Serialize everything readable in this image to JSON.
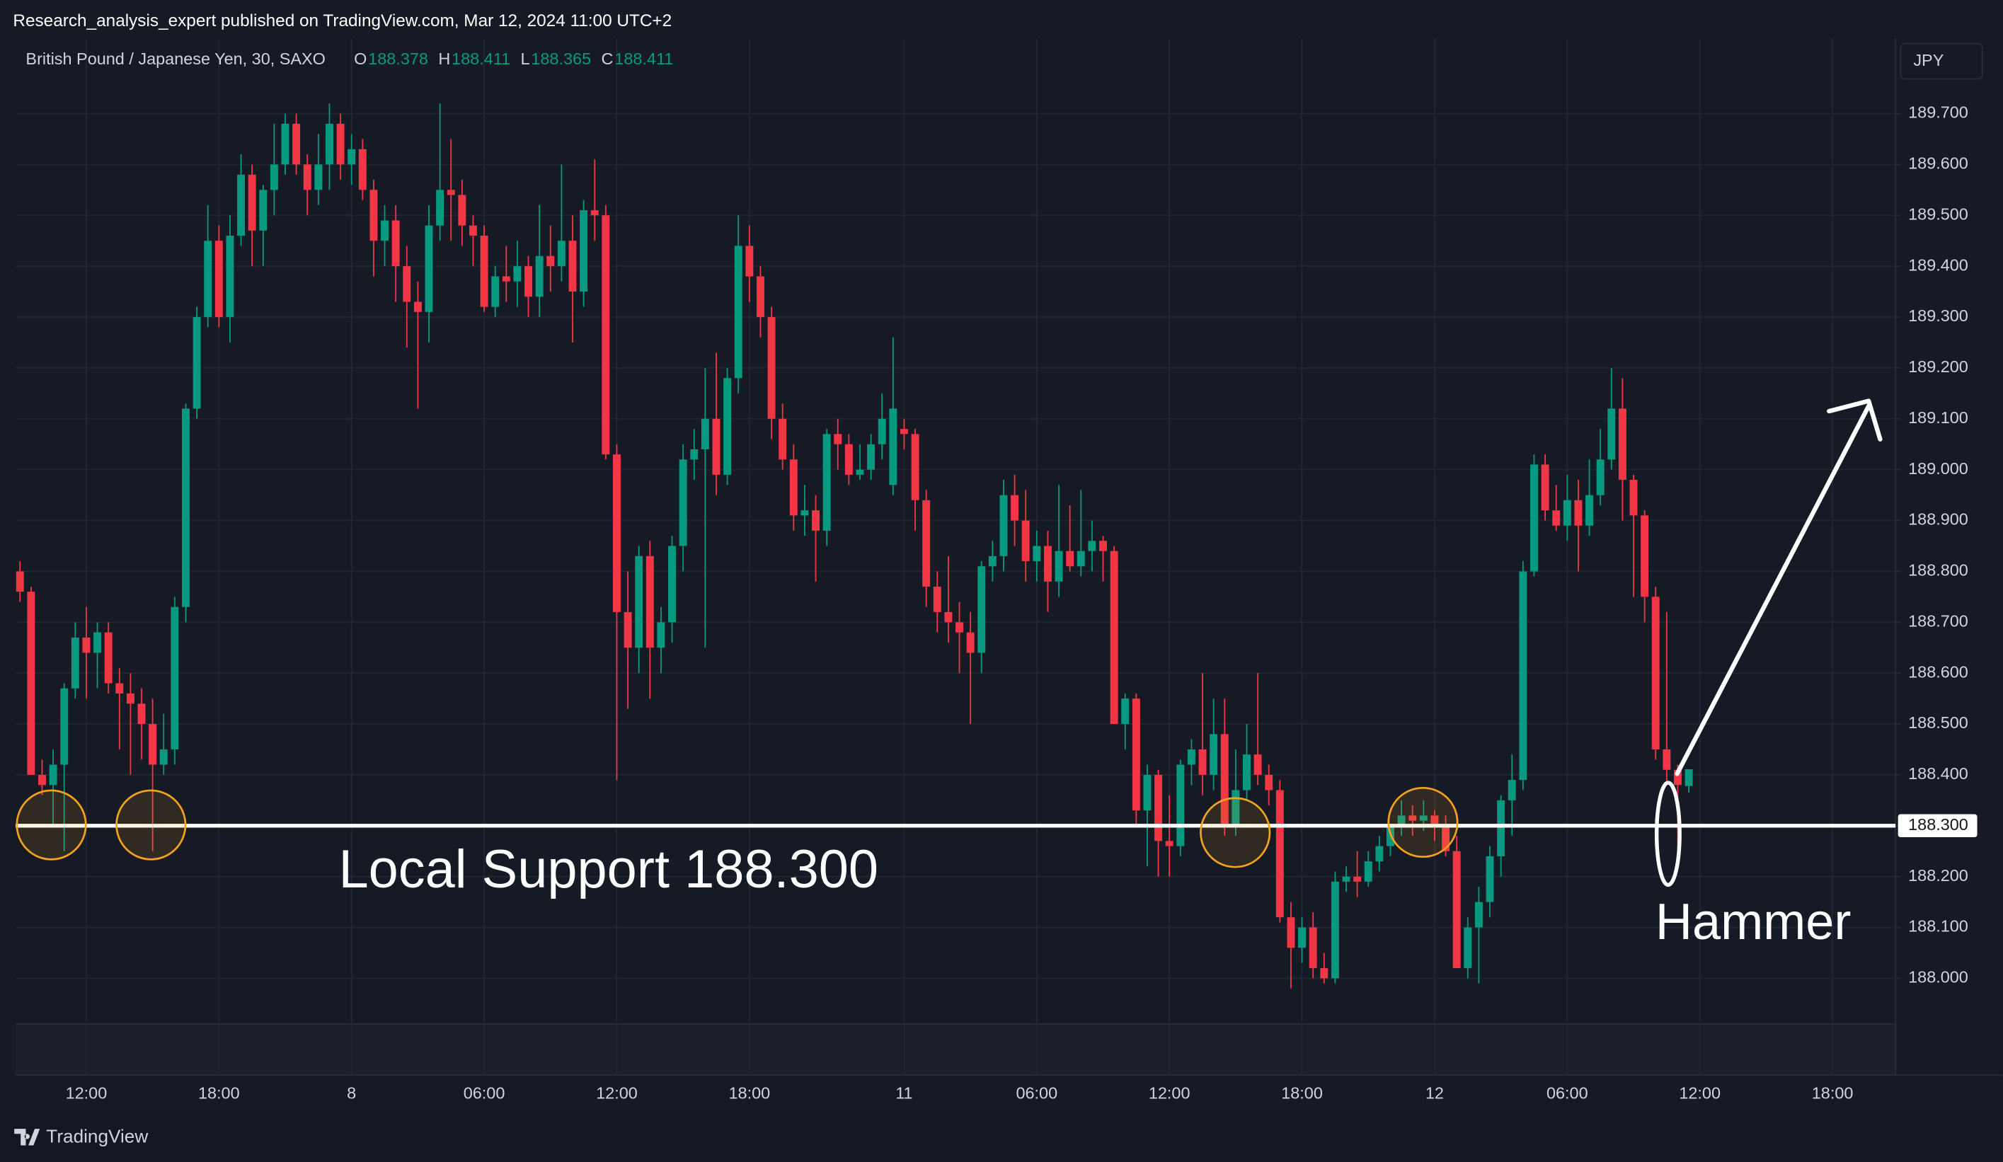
{
  "header": {
    "published": "Research_analysis_expert published on TradingView.com, Mar 12, 2024 11:00 UTC+2"
  },
  "footer": {
    "brand": "TradingView"
  },
  "chart_data": {
    "type": "candlestick",
    "symbol": "British Pound / Japanese Yen, 30, SAXO",
    "legend_values": [
      {
        "label": "O",
        "value": 188.378
      },
      {
        "label": "H",
        "value": 188.411
      },
      {
        "label": "L",
        "value": 188.365
      },
      {
        "label": "C",
        "value": 188.411
      }
    ],
    "currency": "JPY",
    "up_color": "#089981",
    "down_color": "#f23645",
    "ylim": [
      187.91,
      189.848
    ],
    "yticks": [
      {
        "value": 188,
        "label": "188.000"
      },
      {
        "value": 188.1,
        "label": "188.100"
      },
      {
        "value": 188.2,
        "label": "188.200"
      },
      {
        "value": 188.3,
        "label": "188.300"
      },
      {
        "value": 188.4,
        "label": "188.400"
      },
      {
        "value": 188.5,
        "label": "188.500"
      },
      {
        "value": 188.6,
        "label": "188.600"
      },
      {
        "value": 188.7,
        "label": "188.700"
      },
      {
        "value": 188.8,
        "label": "188.800"
      },
      {
        "value": 188.9,
        "label": "188.900"
      },
      {
        "value": 189,
        "label": "189.000"
      },
      {
        "value": 189.1,
        "label": "189.100"
      },
      {
        "value": 189.2,
        "label": "189.200"
      },
      {
        "value": 189.3,
        "label": "189.300"
      },
      {
        "value": 189.4,
        "label": "189.400"
      },
      {
        "value": 189.5,
        "label": "189.500"
      },
      {
        "value": 189.6,
        "label": "189.600"
      },
      {
        "value": 189.7,
        "label": "189.700"
      }
    ],
    "xlim": [
      -0.4,
      169.7
    ],
    "xticks": [
      {
        "value": 6,
        "label": "12:00"
      },
      {
        "value": 18,
        "label": "18:00"
      },
      {
        "value": 30,
        "label": "8"
      },
      {
        "value": 42,
        "label": "06:00"
      },
      {
        "value": 54,
        "label": "12:00"
      },
      {
        "value": 66,
        "label": "18:00"
      },
      {
        "value": 80,
        "label": "11"
      },
      {
        "value": 92,
        "label": "06:00"
      },
      {
        "value": 104,
        "label": "12:00"
      },
      {
        "value": 116,
        "label": "18:00"
      },
      {
        "value": 128,
        "label": "12"
      },
      {
        "value": 140,
        "label": "06:00"
      },
      {
        "value": 152,
        "label": "12:00"
      },
      {
        "value": 164,
        "label": "18:00"
      }
    ],
    "grid": true,
    "support_line": {
      "value": 188.3,
      "label": "188.300",
      "color": "#ffffff"
    },
    "annotations": [
      "Local Support 188.300",
      "Hammer"
    ],
    "ohlc": [
      [
        188.8,
        188.82,
        188.74,
        188.76
      ],
      [
        188.76,
        188.77,
        188.4,
        188.4
      ],
      [
        188.4,
        188.43,
        188.36,
        188.38
      ],
      [
        188.38,
        188.45,
        188.3,
        188.42
      ],
      [
        188.42,
        188.58,
        188.25,
        188.57
      ],
      [
        188.57,
        188.7,
        188.55,
        188.67
      ],
      [
        188.67,
        188.73,
        188.55,
        188.64
      ],
      [
        188.64,
        188.7,
        188.57,
        188.68
      ],
      [
        188.68,
        188.7,
        188.56,
        188.58
      ],
      [
        188.58,
        188.61,
        188.45,
        188.56
      ],
      [
        188.56,
        188.6,
        188.4,
        188.54
      ],
      [
        188.54,
        188.57,
        188.43,
        188.5
      ],
      [
        188.5,
        188.55,
        188.25,
        188.42
      ],
      [
        188.42,
        188.52,
        188.4,
        188.45
      ],
      [
        188.45,
        188.75,
        188.42,
        188.73
      ],
      [
        188.73,
        189.13,
        188.7,
        189.12
      ],
      [
        189.12,
        189.32,
        189.1,
        189.3
      ],
      [
        189.3,
        189.52,
        189.28,
        189.45
      ],
      [
        189.45,
        189.48,
        189.28,
        189.3
      ],
      [
        189.3,
        189.5,
        189.25,
        189.46
      ],
      [
        189.46,
        189.62,
        189.44,
        189.58
      ],
      [
        189.58,
        189.6,
        189.4,
        189.47
      ],
      [
        189.47,
        189.56,
        189.4,
        189.55
      ],
      [
        189.55,
        189.68,
        189.5,
        189.6
      ],
      [
        189.6,
        189.7,
        189.58,
        189.68
      ],
      [
        189.68,
        189.7,
        189.58,
        189.6
      ],
      [
        189.6,
        189.62,
        189.5,
        189.55
      ],
      [
        189.55,
        189.66,
        189.52,
        189.6
      ],
      [
        189.6,
        189.72,
        189.55,
        189.68
      ],
      [
        189.68,
        189.7,
        189.57,
        189.6
      ],
      [
        189.6,
        189.66,
        189.56,
        189.63
      ],
      [
        189.63,
        189.65,
        189.53,
        189.55
      ],
      [
        189.55,
        189.57,
        189.38,
        189.45
      ],
      [
        189.45,
        189.52,
        189.4,
        189.49
      ],
      [
        189.49,
        189.52,
        189.33,
        189.4
      ],
      [
        189.4,
        189.44,
        189.24,
        189.33
      ],
      [
        189.33,
        189.37,
        189.12,
        189.31
      ],
      [
        189.31,
        189.52,
        189.25,
        189.48
      ],
      [
        189.48,
        189.72,
        189.45,
        189.55
      ],
      [
        189.55,
        189.65,
        189.45,
        189.54
      ],
      [
        189.54,
        189.57,
        189.44,
        189.48
      ],
      [
        189.48,
        189.5,
        189.4,
        189.46
      ],
      [
        189.46,
        189.48,
        189.31,
        189.32
      ],
      [
        189.32,
        189.4,
        189.3,
        189.38
      ],
      [
        189.38,
        189.44,
        189.33,
        189.37
      ],
      [
        189.37,
        189.45,
        189.32,
        189.4
      ],
      [
        189.4,
        189.42,
        189.3,
        189.34
      ],
      [
        189.34,
        189.52,
        189.3,
        189.42
      ],
      [
        189.42,
        189.48,
        189.35,
        189.4
      ],
      [
        189.4,
        189.6,
        189.37,
        189.45
      ],
      [
        189.45,
        189.5,
        189.25,
        189.35
      ],
      [
        189.35,
        189.53,
        189.32,
        189.51
      ],
      [
        189.51,
        189.61,
        189.45,
        189.5
      ],
      [
        189.5,
        189.52,
        189.02,
        189.03
      ],
      [
        189.03,
        189.05,
        188.39,
        188.72
      ],
      [
        188.72,
        188.8,
        188.53,
        188.65
      ],
      [
        188.65,
        188.85,
        188.6,
        188.83
      ],
      [
        188.83,
        188.86,
        188.55,
        188.65
      ],
      [
        188.65,
        188.73,
        188.6,
        188.7
      ],
      [
        188.7,
        188.87,
        188.66,
        188.85
      ],
      [
        188.85,
        189.05,
        188.8,
        189.02
      ],
      [
        189.02,
        189.08,
        188.98,
        189.04
      ],
      [
        189.04,
        189.2,
        188.65,
        189.1
      ],
      [
        189.1,
        189.23,
        188.95,
        188.99
      ],
      [
        188.99,
        189.2,
        188.97,
        189.18
      ],
      [
        189.18,
        189.5,
        189.15,
        189.44
      ],
      [
        189.44,
        189.48,
        189.33,
        189.38
      ],
      [
        189.38,
        189.4,
        189.26,
        189.3
      ],
      [
        189.3,
        189.32,
        189.06,
        189.1
      ],
      [
        189.1,
        189.13,
        189.0,
        189.02
      ],
      [
        189.02,
        189.05,
        188.88,
        188.91
      ],
      [
        188.91,
        188.97,
        188.87,
        188.92
      ],
      [
        188.92,
        188.95,
        188.78,
        188.88
      ],
      [
        188.88,
        189.08,
        188.85,
        189.07
      ],
      [
        189.07,
        189.1,
        189.0,
        189.05
      ],
      [
        189.05,
        189.07,
        188.97,
        188.99
      ],
      [
        188.99,
        189.05,
        188.98,
        189.0
      ],
      [
        189.0,
        189.07,
        188.98,
        189.05
      ],
      [
        189.05,
        189.15,
        189.02,
        189.1
      ],
      [
        188.97,
        189.26,
        188.95,
        189.12
      ],
      [
        189.08,
        189.1,
        189.04,
        189.07
      ],
      [
        189.07,
        189.08,
        188.88,
        188.94
      ],
      [
        188.94,
        188.96,
        188.73,
        188.77
      ],
      [
        188.77,
        188.8,
        188.68,
        188.72
      ],
      [
        188.72,
        188.83,
        188.66,
        188.7
      ],
      [
        188.7,
        188.74,
        188.6,
        188.68
      ],
      [
        188.68,
        188.72,
        188.5,
        188.64
      ],
      [
        188.64,
        188.82,
        188.6,
        188.81
      ],
      [
        188.81,
        188.86,
        188.78,
        188.83
      ],
      [
        188.83,
        188.98,
        188.8,
        188.95
      ],
      [
        188.95,
        188.99,
        188.85,
        188.9
      ],
      [
        188.9,
        188.96,
        188.78,
        188.82
      ],
      [
        188.82,
        188.88,
        188.78,
        188.85
      ],
      [
        188.85,
        188.88,
        188.72,
        188.78
      ],
      [
        188.78,
        188.97,
        188.75,
        188.84
      ],
      [
        188.84,
        188.93,
        188.8,
        188.81
      ],
      [
        188.81,
        188.96,
        188.79,
        188.84
      ],
      [
        188.84,
        188.9,
        188.8,
        188.86
      ],
      [
        188.86,
        188.87,
        188.78,
        188.84
      ],
      [
        188.84,
        188.85,
        188.5,
        188.5
      ],
      [
        188.5,
        188.56,
        188.45,
        188.55
      ],
      [
        188.55,
        188.56,
        188.3,
        188.33
      ],
      [
        188.33,
        188.42,
        188.22,
        188.4
      ],
      [
        188.4,
        188.41,
        188.2,
        188.27
      ],
      [
        188.27,
        188.36,
        188.2,
        188.26
      ],
      [
        188.26,
        188.43,
        188.24,
        188.42
      ],
      [
        188.42,
        188.47,
        188.38,
        188.45
      ],
      [
        188.45,
        188.6,
        188.36,
        188.4
      ],
      [
        188.4,
        188.55,
        188.37,
        188.48
      ],
      [
        188.48,
        188.55,
        188.28,
        188.3
      ],
      [
        188.3,
        188.45,
        188.28,
        188.37
      ],
      [
        188.37,
        188.5,
        188.35,
        188.44
      ],
      [
        188.44,
        188.6,
        188.38,
        188.4
      ],
      [
        188.4,
        188.42,
        188.34,
        188.37
      ],
      [
        188.37,
        188.39,
        188.11,
        188.12
      ],
      [
        188.12,
        188.15,
        187.98,
        188.06
      ],
      [
        188.06,
        188.12,
        188.03,
        188.1
      ],
      [
        188.1,
        188.13,
        188.0,
        188.02
      ],
      [
        188.02,
        188.05,
        187.99,
        188.0
      ],
      [
        188.0,
        188.21,
        187.99,
        188.19
      ],
      [
        188.19,
        188.22,
        188.17,
        188.2
      ],
      [
        188.2,
        188.25,
        188.16,
        188.19
      ],
      [
        188.19,
        188.25,
        188.18,
        188.23
      ],
      [
        188.23,
        188.28,
        188.21,
        188.26
      ],
      [
        188.26,
        188.3,
        188.24,
        188.3
      ],
      [
        188.3,
        188.35,
        188.28,
        188.32
      ],
      [
        188.32,
        188.34,
        188.28,
        188.31
      ],
      [
        188.31,
        188.35,
        188.29,
        188.32
      ],
      [
        188.32,
        188.33,
        188.27,
        188.3
      ],
      [
        188.3,
        188.32,
        188.24,
        188.25
      ],
      [
        188.25,
        188.28,
        188.02,
        188.02
      ],
      [
        188.02,
        188.12,
        188.0,
        188.1
      ],
      [
        188.1,
        188.18,
        187.99,
        188.15
      ],
      [
        188.15,
        188.26,
        188.12,
        188.24
      ],
      [
        188.24,
        188.36,
        188.2,
        188.35
      ],
      [
        188.35,
        188.44,
        188.28,
        188.39
      ],
      [
        188.39,
        188.82,
        188.37,
        188.8
      ],
      [
        188.8,
        189.03,
        188.79,
        189.01
      ],
      [
        189.01,
        189.03,
        188.9,
        188.92
      ],
      [
        188.92,
        188.97,
        188.88,
        188.89
      ],
      [
        188.89,
        188.99,
        188.86,
        188.94
      ],
      [
        188.94,
        188.98,
        188.8,
        188.89
      ],
      [
        188.89,
        189.02,
        188.87,
        188.95
      ],
      [
        188.95,
        189.08,
        188.93,
        189.02
      ],
      [
        189.02,
        189.2,
        189.0,
        189.12
      ],
      [
        189.12,
        189.18,
        188.9,
        188.98
      ],
      [
        188.98,
        188.99,
        188.75,
        188.91
      ],
      [
        188.91,
        188.92,
        188.7,
        188.75
      ],
      [
        188.75,
        188.77,
        188.43,
        188.45
      ],
      [
        188.45,
        188.72,
        188.38,
        188.41
      ],
      [
        188.41,
        188.42,
        188.25,
        188.38
      ],
      [
        188.378,
        188.411,
        188.365,
        188.411
      ]
    ]
  }
}
